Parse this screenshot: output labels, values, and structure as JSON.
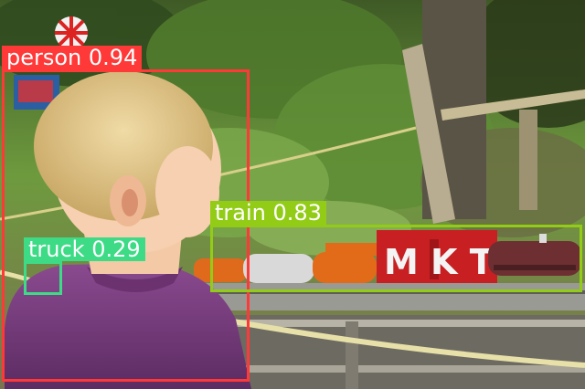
{
  "detections": [
    {
      "id": "person",
      "label": "person 0.94",
      "class_name": "person",
      "confidence": 0.94,
      "color": "#ff3838"
    },
    {
      "id": "train",
      "label": "train 0.83",
      "class_name": "train",
      "confidence": 0.83,
      "color": "#92cc17"
    },
    {
      "id": "truck",
      "label": "truck 0.29",
      "class_name": "truck",
      "confidence": 0.29,
      "color": "#3ddb86"
    }
  ],
  "train_car_text": "M K T"
}
